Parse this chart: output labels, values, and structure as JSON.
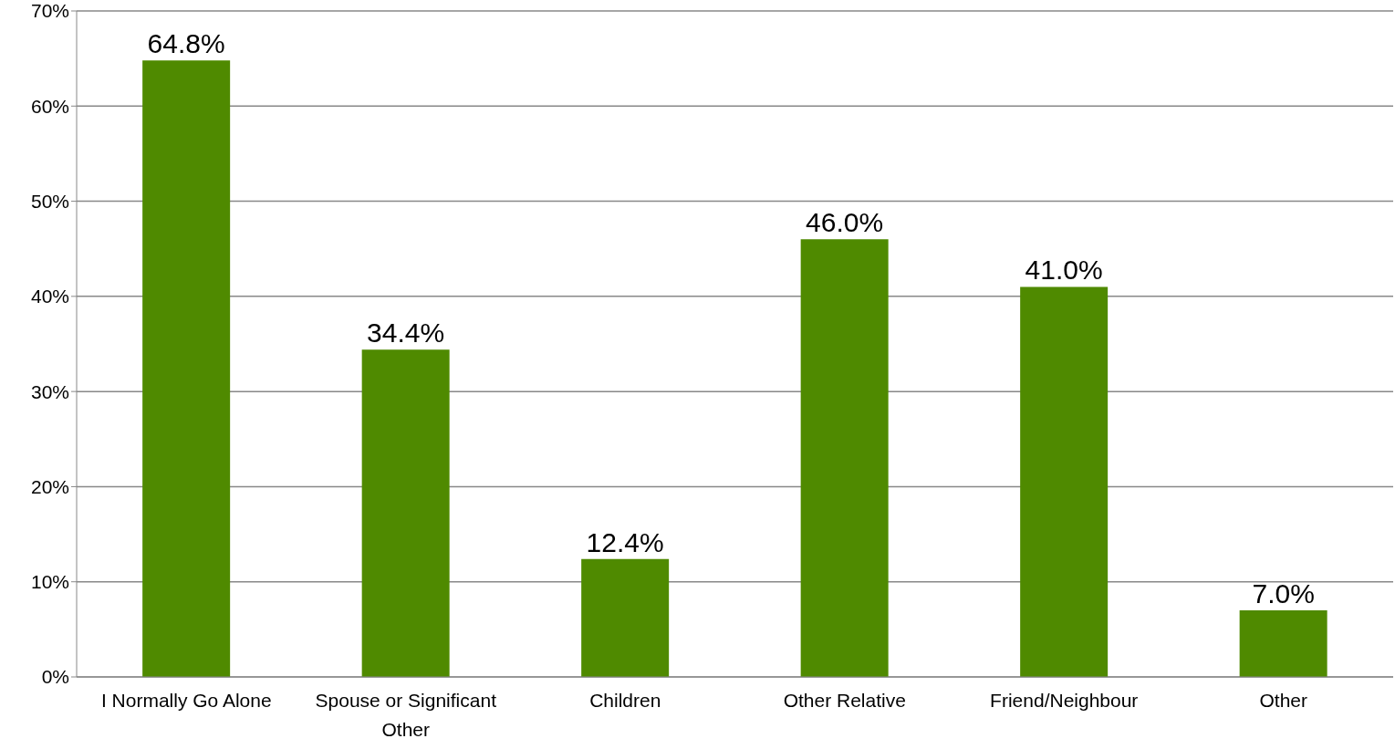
{
  "chart_data": {
    "type": "bar",
    "categories": [
      "I Normally Go Alone",
      "Spouse or Significant Other",
      "Children",
      "Other Relative",
      "Friend/Neighbour",
      "Other"
    ],
    "values": [
      64.8,
      34.4,
      12.4,
      46.0,
      41.0,
      7.0
    ],
    "value_labels": [
      "64.8%",
      "34.4%",
      "12.4%",
      "46.0%",
      "41.0%",
      "7.0%"
    ],
    "color": "#4f8a00",
    "ylim": [
      0,
      70
    ],
    "yticks": [
      {
        "value": 0,
        "label": "0%"
      },
      {
        "value": 10,
        "label": "10%"
      },
      {
        "value": 20,
        "label": "20%"
      },
      {
        "value": 30,
        "label": "30%"
      },
      {
        "value": 40,
        "label": "40%"
      },
      {
        "value": 50,
        "label": "50%"
      },
      {
        "value": 60,
        "label": "60%"
      },
      {
        "value": 70,
        "label": "70%"
      }
    ],
    "grid": "y",
    "legend": false
  }
}
